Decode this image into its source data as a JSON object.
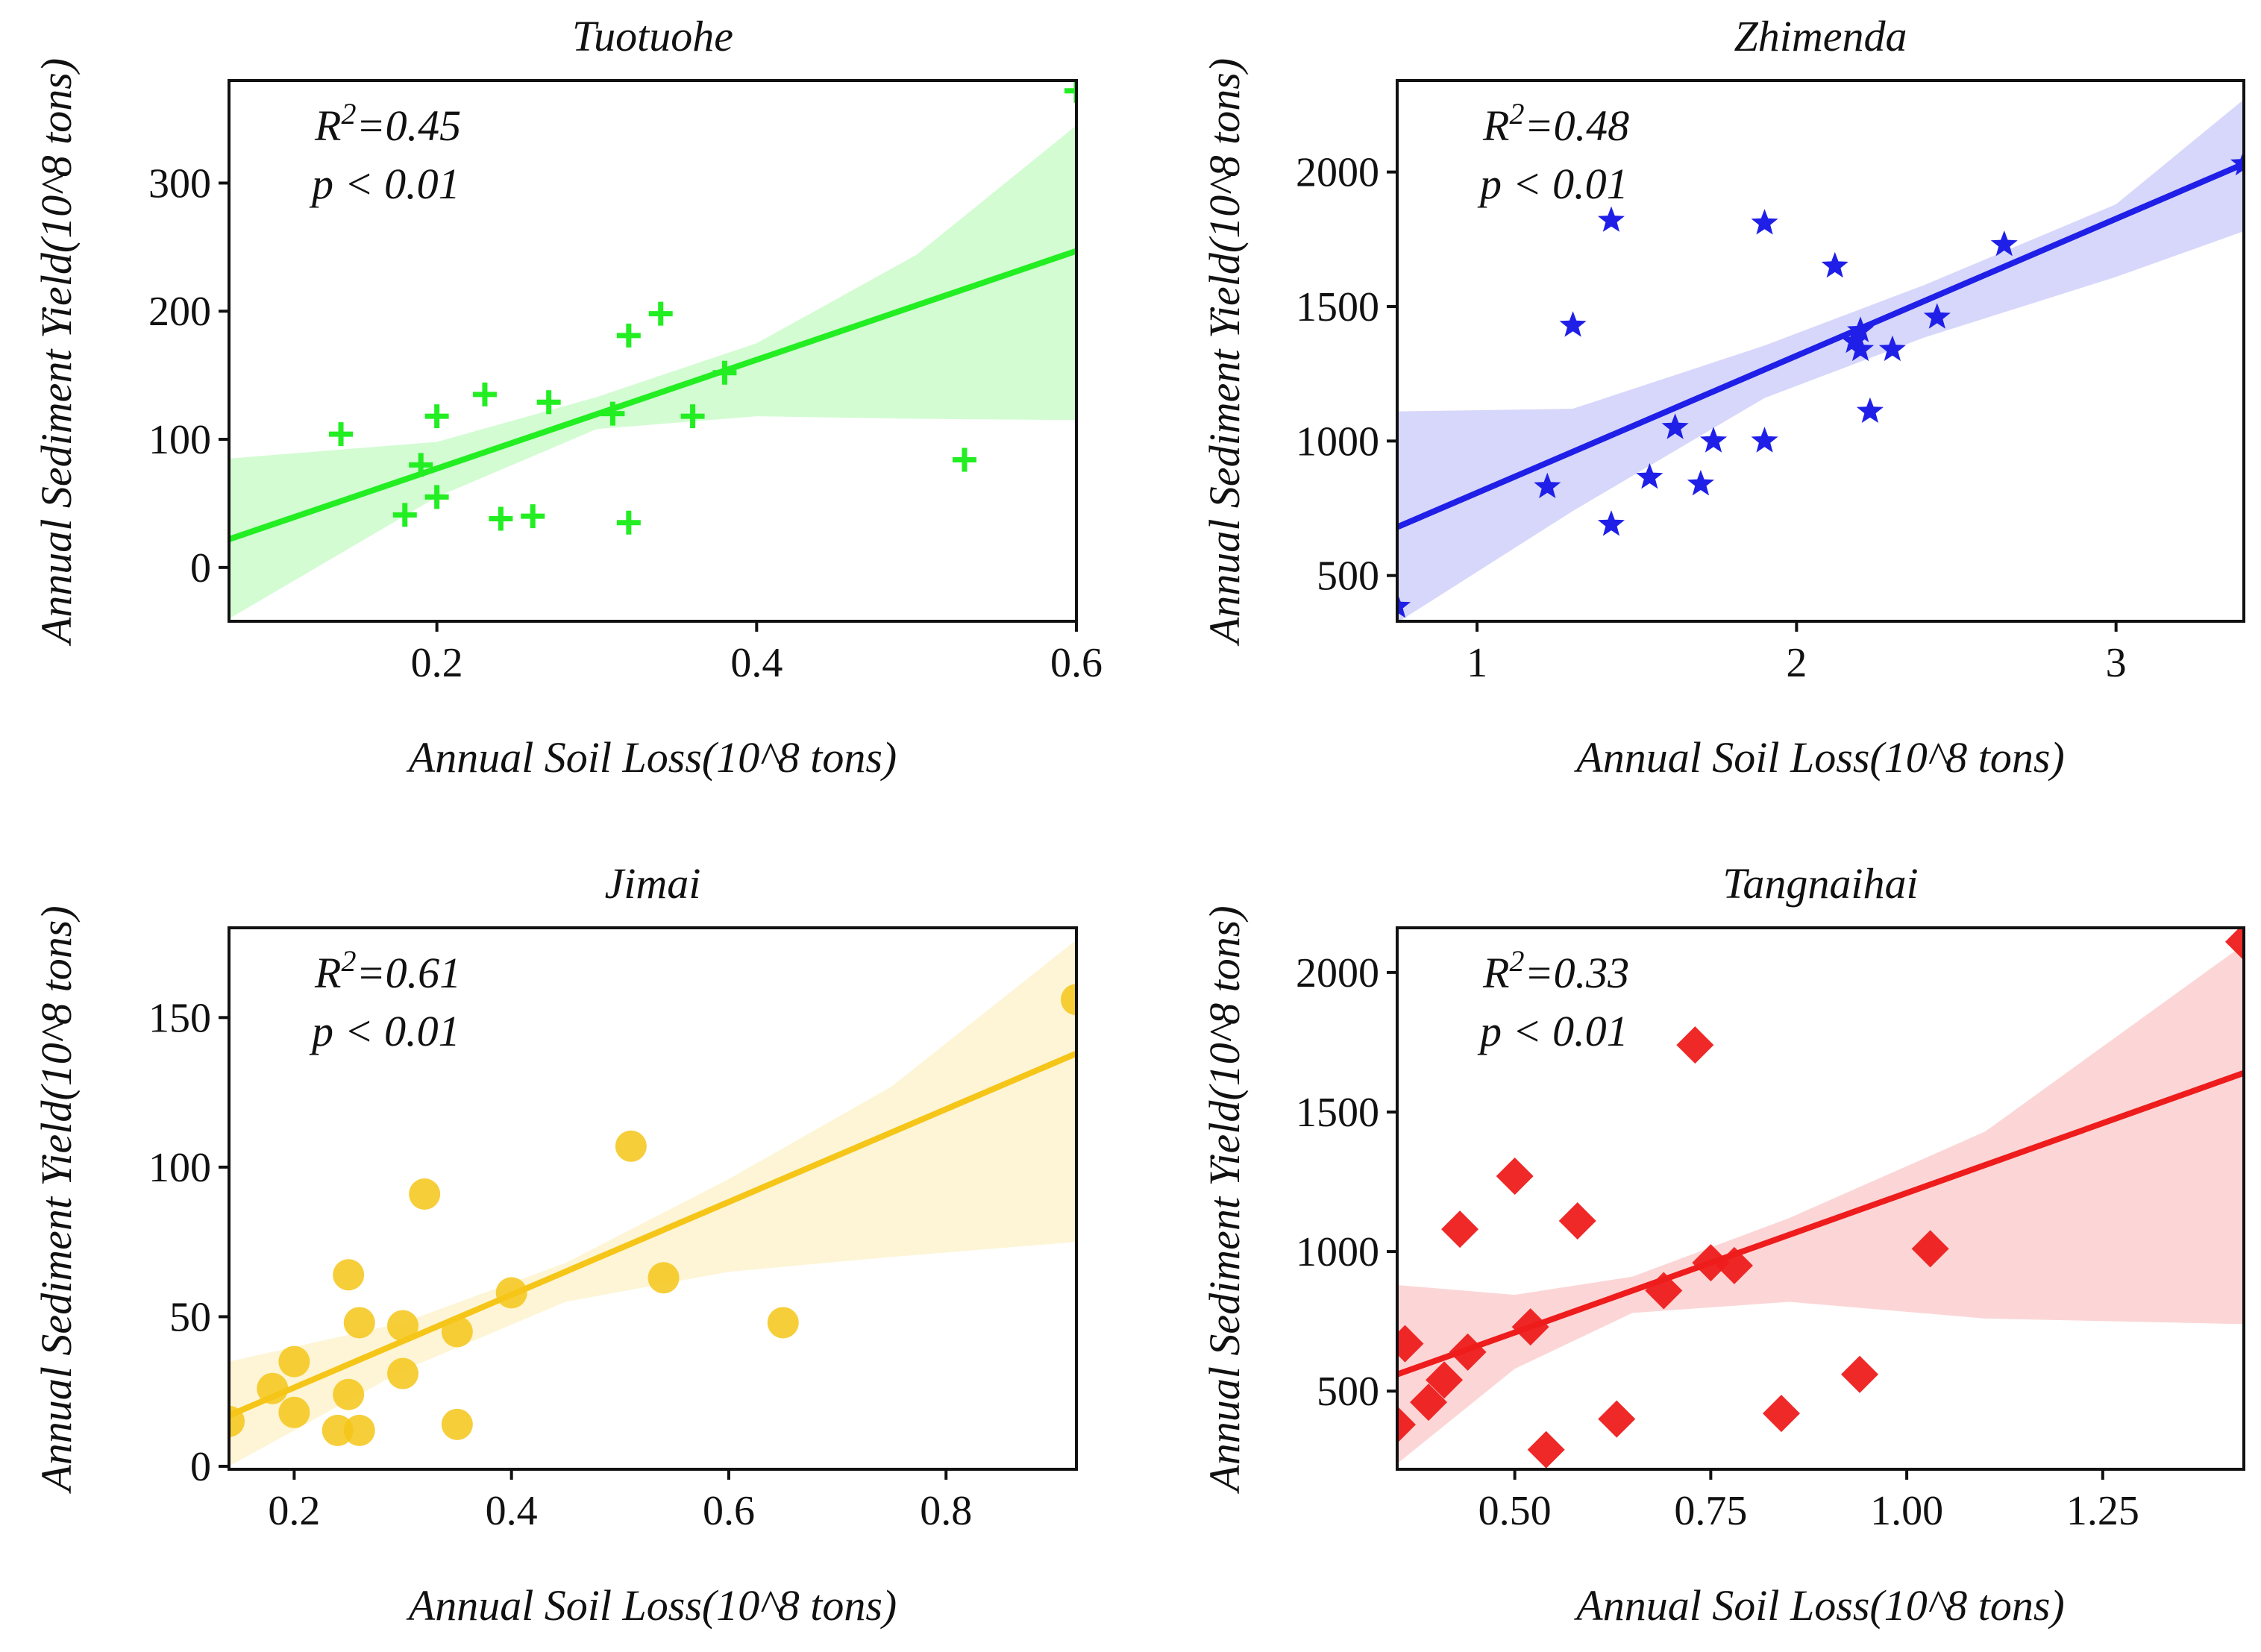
{
  "chart_data": [
    {
      "type": "scatter",
      "title": "Tuotuohe",
      "xlabel": "Annual Soil Loss(10^8 tons)",
      "ylabel": "Annual Sediment Yield(10^8 tons)",
      "xlim": [
        0.07,
        0.6
      ],
      "ylim": [
        -42,
        380
      ],
      "xticks": [
        0.2,
        0.4,
        0.6
      ],
      "xtick_labels": [
        "0.2",
        "0.4",
        "0.6"
      ],
      "yticks": [
        0,
        100,
        200,
        300
      ],
      "ytick_labels": [
        "0",
        "100",
        "200",
        "300"
      ],
      "color": "#22ee22",
      "marker": "plus",
      "r2_label": "R",
      "r2_exp": "2",
      "r2_value": "=0.45",
      "p_label": "p < 0.01",
      "x": [
        0.14,
        0.18,
        0.19,
        0.2,
        0.2,
        0.23,
        0.24,
        0.26,
        0.27,
        0.31,
        0.32,
        0.32,
        0.34,
        0.36,
        0.38,
        0.53,
        0.6
      ],
      "y": [
        104,
        41,
        80,
        118,
        55,
        135,
        38,
        40,
        129,
        120,
        181,
        35,
        198,
        118,
        152,
        84,
        372
      ],
      "fit": {
        "x": [
          0.07,
          0.6
        ],
        "y": [
          22,
          247
        ]
      },
      "ci_upper": [
        [
          0.07,
          85
        ],
        [
          0.2,
          98
        ],
        [
          0.3,
          133
        ],
        [
          0.4,
          175
        ],
        [
          0.5,
          244
        ],
        [
          0.6,
          345
        ]
      ],
      "ci_lower": [
        [
          0.07,
          -40
        ],
        [
          0.2,
          55
        ],
        [
          0.3,
          108
        ],
        [
          0.4,
          118
        ],
        [
          0.5,
          116
        ],
        [
          0.6,
          115
        ]
      ]
    },
    {
      "type": "scatter",
      "title": "Zhimenda",
      "xlabel": "Annual Soil Loss(10^8 tons)",
      "ylabel": "Annual Sediment Yield(10^8 tons)",
      "xlim": [
        0.75,
        3.4
      ],
      "ylim": [
        330,
        2340
      ],
      "xticks": [
        1,
        2,
        3
      ],
      "xtick_labels": [
        "1",
        "2",
        "3"
      ],
      "yticks": [
        500,
        1000,
        1500,
        2000
      ],
      "ytick_labels": [
        "500",
        "1000",
        "1500",
        "2000"
      ],
      "color": "#1f1fe8",
      "marker": "star",
      "r2_label": "R",
      "r2_exp": "2",
      "r2_value": "=0.48",
      "p_label": "p < 0.01",
      "x": [
        0.75,
        1.22,
        1.3,
        1.42,
        1.42,
        1.54,
        1.62,
        1.7,
        1.74,
        1.9,
        1.9,
        2.12,
        2.18,
        2.2,
        2.2,
        2.23,
        2.3,
        2.44,
        2.65,
        3.4
      ],
      "y": [
        385,
        830,
        1430,
        690,
        1820,
        865,
        1050,
        840,
        1000,
        1810,
        1000,
        1650,
        1370,
        1340,
        1410,
        1110,
        1340,
        1460,
        1730,
        2030
      ],
      "fit": {
        "x": [
          0.75,
          3.4
        ],
        "y": [
          680,
          2030
        ]
      },
      "ci_upper": [
        [
          0.75,
          1110
        ],
        [
          1.3,
          1120
        ],
        [
          1.9,
          1355
        ],
        [
          2.4,
          1580
        ],
        [
          3.0,
          1880
        ],
        [
          3.4,
          2270
        ]
      ],
      "ci_lower": [
        [
          0.75,
          325
        ],
        [
          1.3,
          740
        ],
        [
          1.9,
          1160
        ],
        [
          2.4,
          1385
        ],
        [
          3.0,
          1610
        ],
        [
          3.4,
          1780
        ]
      ]
    },
    {
      "type": "scatter",
      "title": "Jimai",
      "xlabel": "Annual Soil Loss(10^8 tons)",
      "ylabel": "Annual Sediment Yield(10^8 tons)",
      "xlim": [
        0.14,
        0.92
      ],
      "ylim": [
        -1,
        180
      ],
      "xticks": [
        0.2,
        0.4,
        0.6,
        0.8
      ],
      "xtick_labels": [
        "0.2",
        "0.4",
        "0.6",
        "0.8"
      ],
      "yticks": [
        0,
        50,
        100,
        150
      ],
      "ytick_labels": [
        "0",
        "50",
        "100",
        "150"
      ],
      "color": "#f5c518",
      "marker": "circle",
      "r2_label": "R",
      "r2_exp": "2",
      "r2_value": "=0.61",
      "p_label": "p < 0.01",
      "x": [
        0.14,
        0.18,
        0.2,
        0.2,
        0.24,
        0.25,
        0.25,
        0.26,
        0.26,
        0.3,
        0.3,
        0.32,
        0.35,
        0.35,
        0.4,
        0.51,
        0.54,
        0.65,
        0.92
      ],
      "y": [
        15,
        26,
        35,
        18,
        12,
        64,
        24,
        12,
        48,
        47,
        31,
        91,
        45,
        14,
        58,
        107,
        63,
        48,
        156
      ],
      "fit": {
        "x": [
          0.14,
          0.92
        ],
        "y": [
          17,
          138
        ]
      },
      "ci_upper": [
        [
          0.14,
          35
        ],
        [
          0.3,
          48
        ],
        [
          0.45,
          68
        ],
        [
          0.6,
          96
        ],
        [
          0.75,
          127
        ],
        [
          0.92,
          176
        ]
      ],
      "ci_lower": [
        [
          0.14,
          0
        ],
        [
          0.3,
          32
        ],
        [
          0.45,
          55
        ],
        [
          0.6,
          65
        ],
        [
          0.75,
          70
        ],
        [
          0.92,
          75
        ]
      ]
    },
    {
      "type": "scatter",
      "title": "Tangnaihai",
      "xlabel": "Annual Soil Loss(10^8 tons)",
      "ylabel": "Annual Sediment Yield(10^8 tons)",
      "xlim": [
        0.35,
        1.43
      ],
      "ylim": [
        220,
        2160
      ],
      "xticks": [
        0.5,
        0.75,
        1.0,
        1.25
      ],
      "xtick_labels": [
        "0.50",
        "0.75",
        "1.00",
        "1.25"
      ],
      "yticks": [
        500,
        1000,
        1500,
        2000
      ],
      "ytick_labels": [
        "500",
        "1000",
        "1500",
        "2000"
      ],
      "color": "#ee1c1c",
      "marker": "diamond",
      "r2_label": "R",
      "r2_exp": "2",
      "r2_value": "=0.33",
      "p_label": "p < 0.01",
      "x": [
        0.35,
        0.36,
        0.39,
        0.41,
        0.44,
        0.43,
        0.5,
        0.52,
        0.54,
        0.58,
        0.63,
        0.69,
        0.73,
        0.75,
        0.78,
        0.84,
        0.94,
        1.03,
        1.43
      ],
      "y": [
        380,
        670,
        460,
        540,
        640,
        1080,
        1270,
        730,
        290,
        1110,
        400,
        860,
        1740,
        960,
        950,
        420,
        560,
        1010,
        2110
      ],
      "fit": {
        "x": [
          0.35,
          1.43
        ],
        "y": [
          560,
          1640
        ]
      },
      "ci_upper": [
        [
          0.35,
          880
        ],
        [
          0.5,
          845
        ],
        [
          0.65,
          910
        ],
        [
          0.85,
          1120
        ],
        [
          1.1,
          1430
        ],
        [
          1.43,
          2100
        ]
      ],
      "ci_lower": [
        [
          0.35,
          240
        ],
        [
          0.5,
          580
        ],
        [
          0.65,
          780
        ],
        [
          0.85,
          820
        ],
        [
          1.1,
          760
        ],
        [
          1.43,
          740
        ]
      ]
    }
  ]
}
